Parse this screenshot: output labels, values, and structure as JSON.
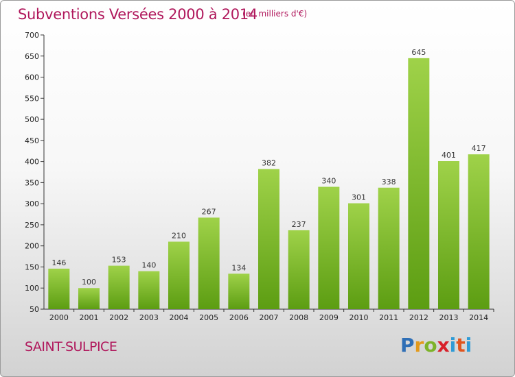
{
  "title": "Subventions Versées 2000 à 2014",
  "subtitle": "(en milliers d'€)",
  "town": "SAINT-SULPICE",
  "logo": "Proxiti",
  "colors": {
    "title": "#b0185c",
    "bar_top": "#9fd249",
    "bar_bottom": "#5c9d12"
  },
  "chart_data": {
    "type": "bar",
    "title": "Subventions Versées 2000 à 2014",
    "subtitle": "(en milliers d'€)",
    "categories": [
      "2000",
      "2001",
      "2002",
      "2003",
      "2004",
      "2005",
      "2006",
      "2007",
      "2008",
      "2009",
      "2010",
      "2011",
      "2012",
      "2013",
      "2014"
    ],
    "values": [
      146,
      100,
      153,
      140,
      210,
      267,
      134,
      382,
      237,
      340,
      301,
      338,
      645,
      401,
      417
    ],
    "ylim": [
      50,
      700
    ],
    "yticks": [
      50,
      100,
      150,
      200,
      250,
      300,
      350,
      400,
      450,
      500,
      550,
      600,
      650,
      700
    ],
    "grid": false,
    "xlabel": "",
    "ylabel": ""
  }
}
